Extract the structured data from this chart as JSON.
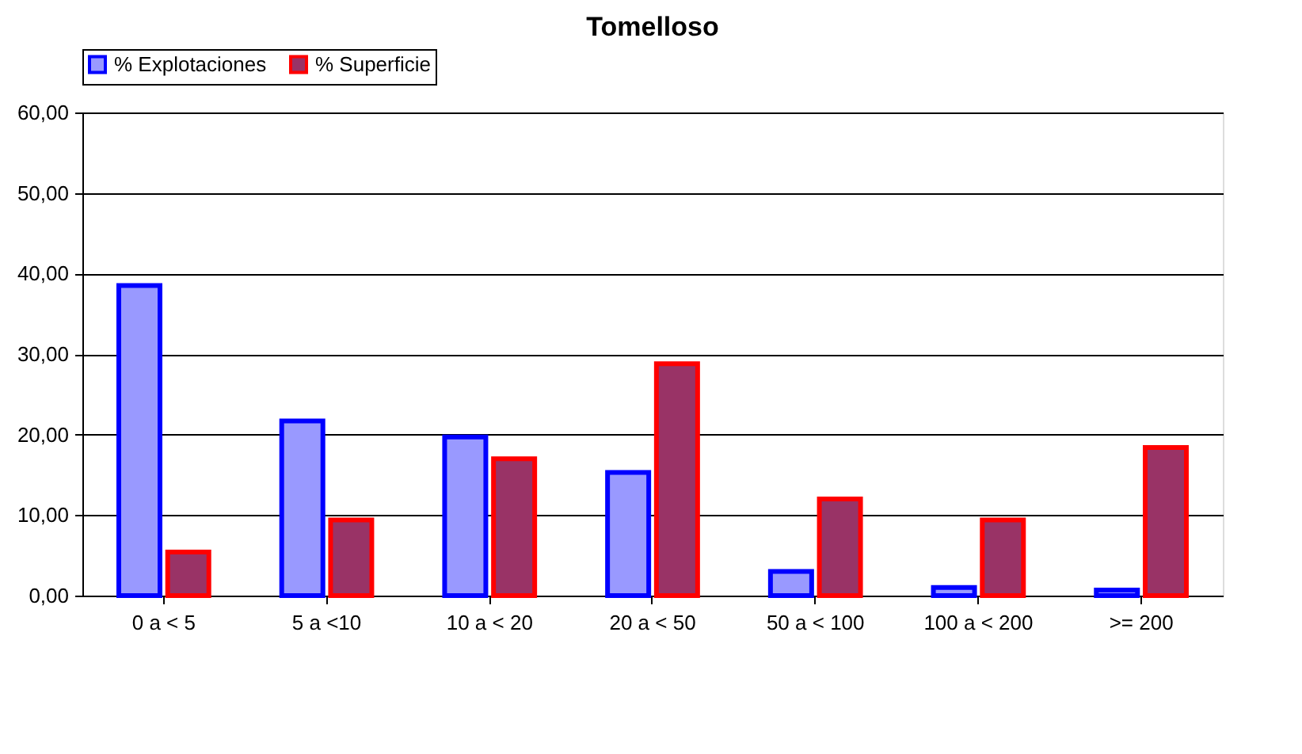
{
  "chart_data": {
    "type": "bar",
    "title": "Tomelloso",
    "categories": [
      "0 a < 5",
      "5 a <10",
      "10 a < 20",
      "20 a < 50",
      "50 a < 100",
      "100 a < 200",
      ">= 200"
    ],
    "series": [
      {
        "name": "% Explotaciones",
        "color": "#9999ff",
        "values": [
          38.5,
          21.7,
          19.7,
          15.3,
          3.0,
          1.0,
          0.7
        ]
      },
      {
        "name": "% Superficie",
        "color": "#993366",
        "values": [
          5.4,
          9.4,
          17.0,
          28.8,
          12.0,
          9.4,
          18.4
        ]
      }
    ],
    "ylim": [
      0,
      60
    ],
    "yticks": [
      {
        "value": 0,
        "label": "0,00"
      },
      {
        "value": 10,
        "label": "10,00"
      },
      {
        "value": 20,
        "label": "20,00"
      },
      {
        "value": 30,
        "label": "30,00"
      },
      {
        "value": 40,
        "label": "40,00"
      },
      {
        "value": 50,
        "label": "50,00"
      },
      {
        "value": 60,
        "label": "60,00"
      }
    ],
    "grid": "y",
    "legend": "top"
  }
}
